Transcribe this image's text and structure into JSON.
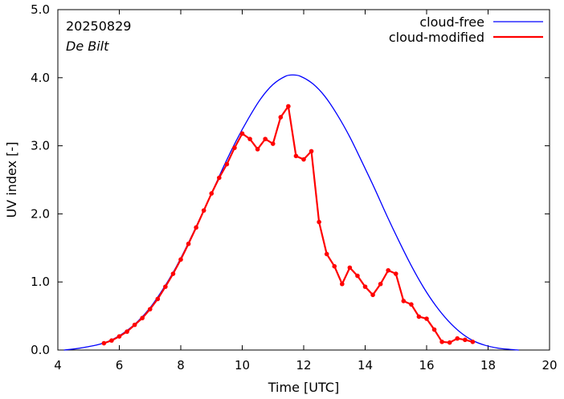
{
  "chart_data": {
    "type": "line",
    "title": "",
    "annotations": {
      "date": "20250829",
      "station": "De Bilt"
    },
    "xlabel": "Time  [UTC]",
    "ylabel": "UV index  [-]",
    "xlim": [
      4,
      20
    ],
    "ylim": [
      0,
      5
    ],
    "xticks": [
      4,
      6,
      8,
      10,
      12,
      14,
      16,
      18,
      20
    ],
    "xtick_labels": [
      "4",
      "6",
      "8",
      "10",
      "12",
      "14",
      "16",
      "18",
      "20"
    ],
    "yticks": [
      0,
      1,
      2,
      3,
      4,
      5
    ],
    "ytick_labels": [
      "0.0",
      "1.0",
      "2.0",
      "3.0",
      "4.0",
      "5.0"
    ],
    "grid": false,
    "legend_position": "top-right",
    "series": [
      {
        "name": "cloud-free",
        "color": "#0000ff",
        "markers": false,
        "x": [
          4.2,
          4.6,
          5.0,
          5.4,
          5.8,
          6.2,
          6.6,
          7.0,
          7.4,
          7.8,
          8.2,
          8.6,
          9.0,
          9.4,
          9.8,
          10.2,
          10.6,
          11.0,
          11.4,
          11.65,
          11.9,
          12.3,
          12.7,
          13.1,
          13.5,
          13.9,
          14.3,
          14.7,
          15.1,
          15.5,
          15.9,
          16.3,
          16.7,
          17.1,
          17.5,
          17.9,
          18.3,
          18.7,
          19.0
        ],
        "values": [
          0.0,
          0.02,
          0.05,
          0.09,
          0.16,
          0.27,
          0.42,
          0.62,
          0.88,
          1.18,
          1.53,
          1.91,
          2.3,
          2.7,
          3.07,
          3.4,
          3.69,
          3.9,
          4.02,
          4.04,
          4.02,
          3.91,
          3.72,
          3.45,
          3.13,
          2.76,
          2.38,
          1.98,
          1.6,
          1.24,
          0.92,
          0.65,
          0.43,
          0.26,
          0.14,
          0.07,
          0.03,
          0.01,
          0.0
        ]
      },
      {
        "name": "cloud-modified",
        "color": "#ff0000",
        "markers": true,
        "x": [
          5.5,
          5.75,
          6.0,
          6.25,
          6.5,
          6.75,
          7.0,
          7.25,
          7.5,
          7.75,
          8.0,
          8.25,
          8.5,
          8.75,
          9.0,
          9.25,
          9.5,
          9.75,
          10.0,
          10.25,
          10.5,
          10.75,
          11.0,
          11.25,
          11.5,
          11.75,
          12.0,
          12.25,
          12.5,
          12.75,
          13.0,
          13.25,
          13.5,
          13.75,
          14.0,
          14.25,
          14.5,
          14.75,
          15.0,
          15.25,
          15.5,
          15.75,
          16.0,
          16.25,
          16.5,
          16.75,
          17.0,
          17.25,
          17.5
        ],
        "values": [
          0.1,
          0.14,
          0.2,
          0.27,
          0.37,
          0.47,
          0.6,
          0.75,
          0.93,
          1.12,
          1.33,
          1.56,
          1.8,
          2.05,
          2.3,
          2.53,
          2.73,
          2.97,
          3.18,
          3.1,
          2.95,
          3.1,
          3.03,
          3.42,
          3.58,
          2.85,
          2.8,
          2.92,
          1.88,
          1.41,
          1.23,
          0.97,
          1.21,
          1.09,
          0.93,
          0.81,
          0.97,
          1.17,
          1.12,
          0.72,
          0.67,
          0.49,
          0.46,
          0.3,
          0.12,
          0.11,
          0.17,
          0.15,
          0.12
        ]
      }
    ]
  }
}
